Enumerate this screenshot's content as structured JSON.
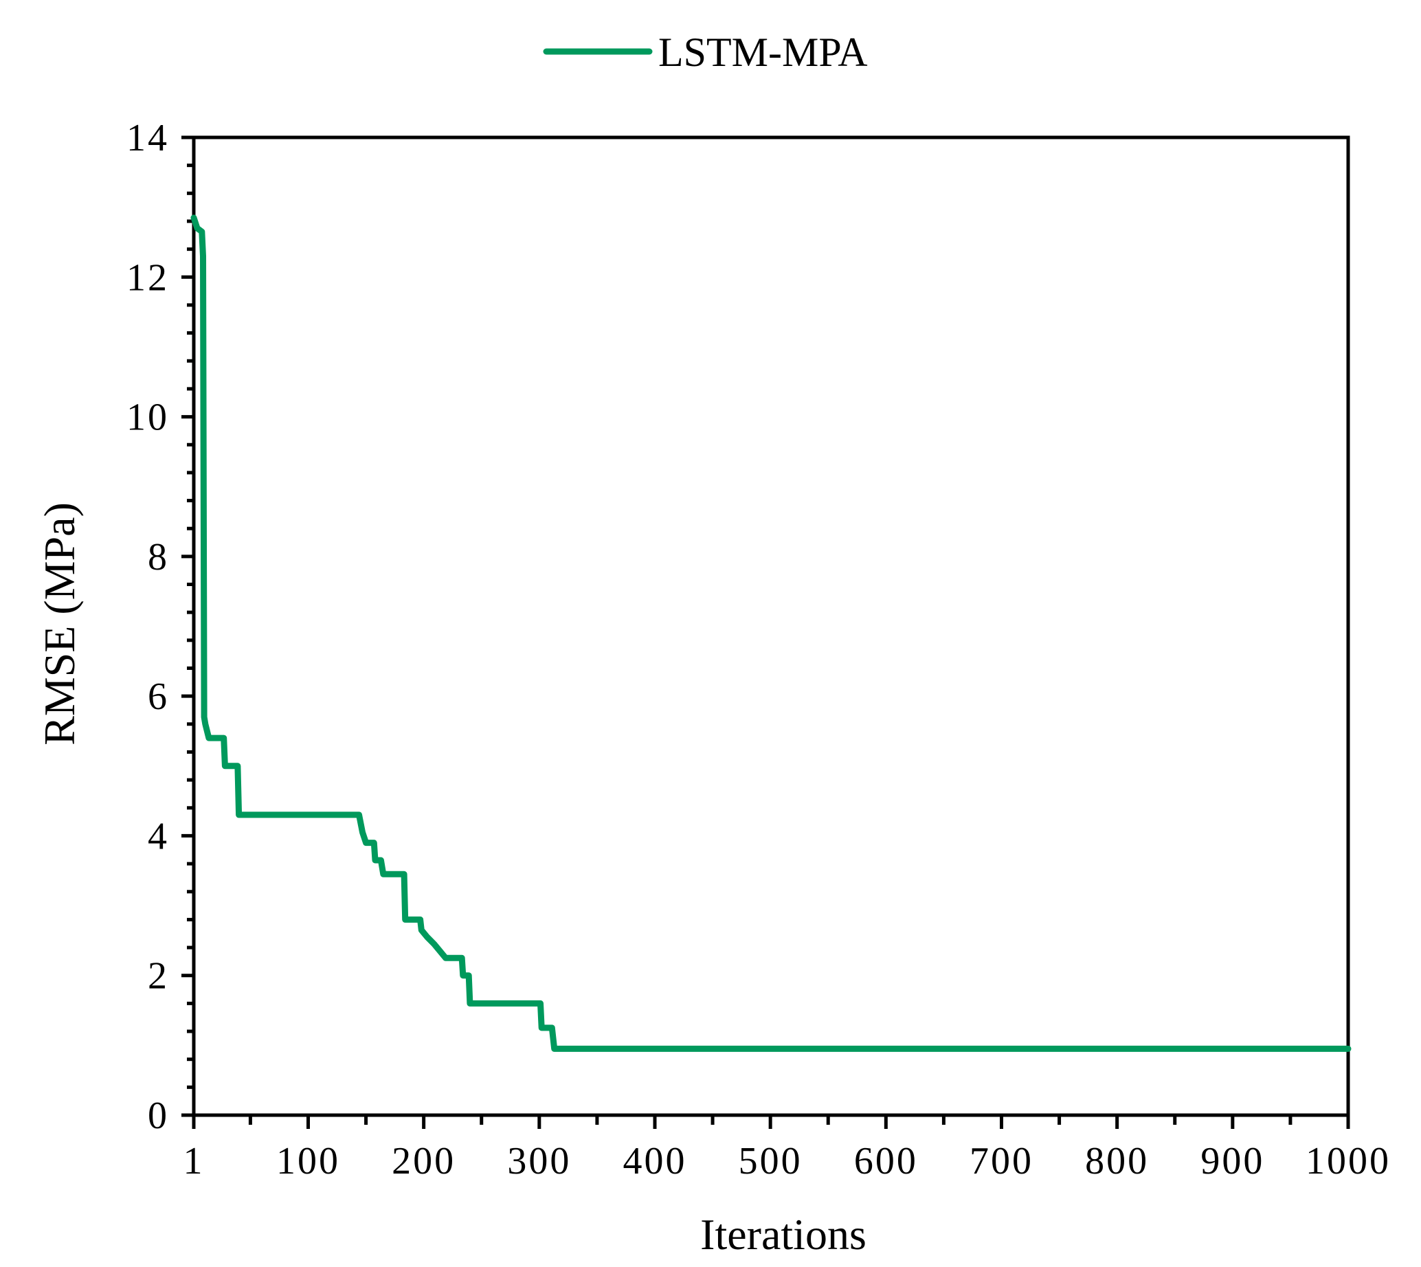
{
  "colors": {
    "series": "#00995c",
    "axis": "#000000",
    "background": "#ffffff"
  },
  "chart_data": {
    "type": "line",
    "title": "",
    "xlabel": "Iterations",
    "ylabel": "RMSE (MPa)",
    "xlim": [
      1,
      1000
    ],
    "ylim": [
      0,
      14
    ],
    "xticks": [
      1,
      100,
      200,
      300,
      400,
      500,
      600,
      700,
      800,
      900,
      1000
    ],
    "xtick_labels": [
      "1",
      "100",
      "200",
      "300",
      "400",
      "500",
      "600",
      "700",
      "800",
      "900",
      "1000"
    ],
    "yticks": [
      0,
      2,
      4,
      6,
      8,
      10,
      12,
      14
    ],
    "ytick_labels": [
      "0",
      "2",
      "4",
      "6",
      "8",
      "10",
      "12",
      "14"
    ],
    "grid": false,
    "legend_position": "top-center",
    "step": true,
    "series": [
      {
        "name": "LSTM-MPA",
        "points": [
          [
            1,
            12.85
          ],
          [
            4,
            12.7
          ],
          [
            8,
            12.65
          ],
          [
            9,
            12.3
          ],
          [
            10,
            5.7
          ],
          [
            11,
            5.6
          ],
          [
            14,
            5.4
          ],
          [
            27,
            5.4
          ],
          [
            28,
            5.0
          ],
          [
            39,
            5.0
          ],
          [
            40,
            4.3
          ],
          [
            144,
            4.3
          ],
          [
            147,
            4.05
          ],
          [
            150,
            3.9
          ],
          [
            157,
            3.9
          ],
          [
            158,
            3.65
          ],
          [
            163,
            3.65
          ],
          [
            165,
            3.45
          ],
          [
            183,
            3.45
          ],
          [
            184,
            2.8
          ],
          [
            197,
            2.8
          ],
          [
            198,
            2.65
          ],
          [
            203,
            2.55
          ],
          [
            209,
            2.45
          ],
          [
            214,
            2.35
          ],
          [
            219,
            2.25
          ],
          [
            233,
            2.25
          ],
          [
            234,
            2.0
          ],
          [
            239,
            2.0
          ],
          [
            240,
            1.6
          ],
          [
            301,
            1.6
          ],
          [
            302,
            1.25
          ],
          [
            311,
            1.25
          ],
          [
            313,
            0.95
          ],
          [
            1000,
            0.95
          ]
        ]
      }
    ]
  }
}
